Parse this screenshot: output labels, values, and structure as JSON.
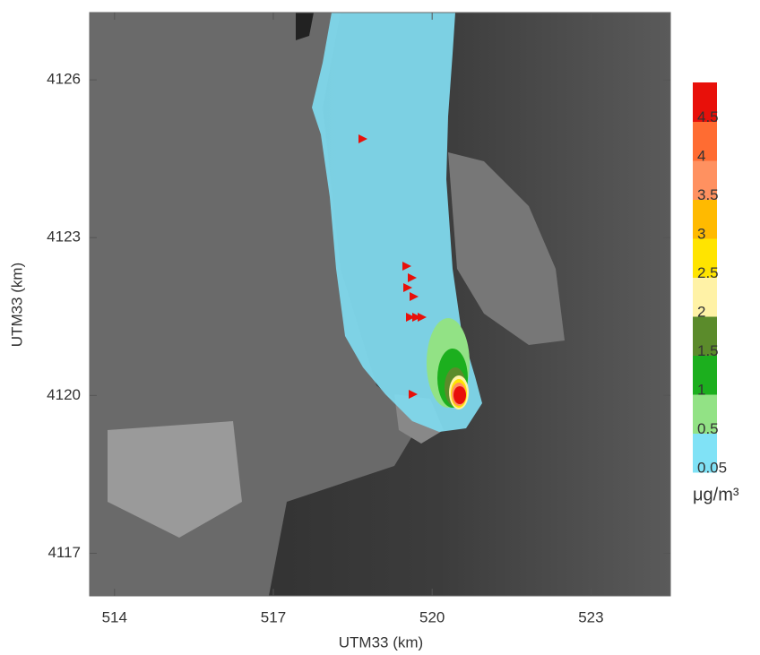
{
  "map": {
    "x_label": "UTM33 (km)",
    "y_label": "UTM33 (km)",
    "xlim": [
      513.53,
      524.5
    ],
    "ylim": [
      4116.19,
      4127.28
    ],
    "xticks": [
      514,
      517,
      520,
      523
    ],
    "yticks": [
      4117,
      4120,
      4123,
      4126
    ],
    "colorbar": {
      "levels": [
        0.05,
        0.5,
        1,
        1.5,
        2,
        2.5,
        3,
        3.5,
        4,
        4.5
      ],
      "colors": [
        "#80e2f6",
        "#92e285",
        "#1caf1e",
        "#5b8b2b",
        "#fff2a6",
        "#ffe400",
        "#ffba00",
        "#ff9160",
        "#ff6c32",
        "#e8100a"
      ],
      "unit": "μg/m³"
    }
  }
}
